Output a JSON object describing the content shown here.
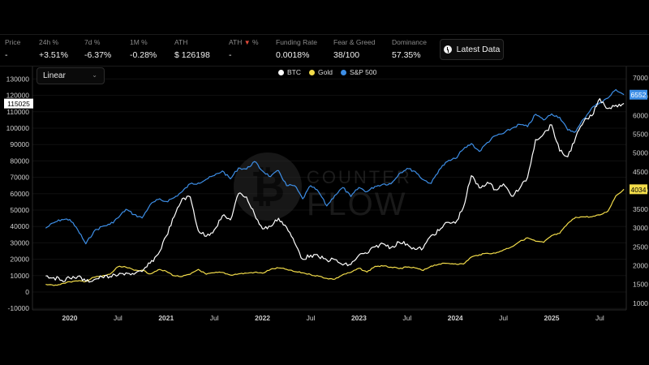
{
  "stats": [
    {
      "label": "Price",
      "value": "-"
    },
    {
      "label": "24h %",
      "value": "+3.51%"
    },
    {
      "label": "7d %",
      "value": "-6.37%"
    },
    {
      "label": "1M %",
      "value": "-0.28%"
    },
    {
      "label": "ATH",
      "value": "$ 126198"
    },
    {
      "label": "ATH",
      "label_suffix": "%",
      "value": "-"
    },
    {
      "label": "Funding Rate",
      "value": "0.0018%"
    },
    {
      "label": "Fear & Greed",
      "value": "38/100"
    },
    {
      "label": "Dominance",
      "value": "57.35%"
    }
  ],
  "toolbar": {
    "latest_data_label": "Latest Data",
    "scale_select_value": "Linear"
  },
  "colors": {
    "btc": "#ffffff",
    "gold": "#f2dc4a",
    "sp500": "#3d8ee6",
    "ath_down": "#e04a3a"
  },
  "chart_data": {
    "type": "line",
    "title": "",
    "legend": [
      "BTC",
      "Gold",
      "S&P 500"
    ],
    "legend_position": "top-center",
    "watermark": "COUNTER FLOW",
    "x_tick_labels": [
      "2020",
      "Jul",
      "2021",
      "Jul",
      "2022",
      "Jul",
      "2023",
      "Jul",
      "2024",
      "Jul",
      "2025",
      "Jul"
    ],
    "left_axis": {
      "series": "BTC",
      "ylim": [
        -10000,
        130000
      ],
      "ticks": [
        -10000,
        0,
        10000,
        20000,
        30000,
        40000,
        50000,
        60000,
        70000,
        80000,
        90000,
        100000,
        110000,
        120000,
        130000
      ],
      "current_value_label": "115025"
    },
    "right_axis": {
      "series": [
        "Gold",
        "S&P 500"
      ],
      "ylim": [
        1000,
        7000
      ],
      "ticks": [
        1000,
        1500,
        2000,
        2500,
        3000,
        3500,
        4000,
        4500,
        5000,
        5500,
        6000,
        6500,
        7000
      ],
      "current_value_labels": {
        "S&P 500": "6552",
        "Gold": "4034"
      }
    },
    "x": [
      "2019-10",
      "2019-11",
      "2019-12",
      "2020-01",
      "2020-02",
      "2020-03",
      "2020-04",
      "2020-05",
      "2020-06",
      "2020-07",
      "2020-08",
      "2020-09",
      "2020-10",
      "2020-11",
      "2020-12",
      "2021-01",
      "2021-02",
      "2021-03",
      "2021-04",
      "2021-05",
      "2021-06",
      "2021-07",
      "2021-08",
      "2021-09",
      "2021-10",
      "2021-11",
      "2021-12",
      "2022-01",
      "2022-02",
      "2022-03",
      "2022-04",
      "2022-05",
      "2022-06",
      "2022-07",
      "2022-08",
      "2022-09",
      "2022-10",
      "2022-11",
      "2022-12",
      "2023-01",
      "2023-02",
      "2023-03",
      "2023-04",
      "2023-05",
      "2023-06",
      "2023-07",
      "2023-08",
      "2023-09",
      "2023-10",
      "2023-11",
      "2023-12",
      "2024-01",
      "2024-02",
      "2024-03",
      "2024-04",
      "2024-05",
      "2024-06",
      "2024-07",
      "2024-08",
      "2024-09",
      "2024-10",
      "2024-11",
      "2024-12",
      "2025-01",
      "2025-02",
      "2025-03",
      "2025-04",
      "2025-05",
      "2025-06",
      "2025-07",
      "2025-08",
      "2025-09",
      "2025-10"
    ],
    "series": [
      {
        "name": "BTC",
        "axis": "left",
        "values": [
          9800,
          8800,
          7200,
          8500,
          9500,
          6500,
          7500,
          9200,
          9400,
          10200,
          11700,
          10800,
          12500,
          17500,
          23000,
          34000,
          46000,
          57000,
          58000,
          37500,
          34000,
          38000,
          46500,
          44000,
          60000,
          58000,
          47500,
          38500,
          40000,
          45000,
          39500,
          30000,
          20000,
          22500,
          21500,
          19500,
          19800,
          16500,
          16800,
          22500,
          23500,
          27500,
          29500,
          27200,
          30400,
          29300,
          26000,
          26800,
          34500,
          37500,
          42500,
          42000,
          51500,
          71000,
          63500,
          67000,
          62500,
          66000,
          58500,
          63000,
          70000,
          93000,
          96500,
          102000,
          86000,
          82500,
          94500,
          104000,
          107500,
          118000,
          112000,
          114000,
          115025
        ]
      },
      {
        "name": "Gold",
        "axis": "right",
        "values": [
          1500,
          1470,
          1520,
          1570,
          1590,
          1580,
          1690,
          1720,
          1770,
          1970,
          1960,
          1880,
          1880,
          1780,
          1890,
          1850,
          1730,
          1710,
          1770,
          1900,
          1770,
          1810,
          1820,
          1750,
          1780,
          1800,
          1820,
          1800,
          1900,
          1940,
          1900,
          1840,
          1810,
          1760,
          1720,
          1660,
          1640,
          1760,
          1820,
          1930,
          1830,
          1980,
          1990,
          1960,
          1920,
          1960,
          1940,
          1870,
          1990,
          2040,
          2060,
          2050,
          2040,
          2230,
          2290,
          2330,
          2330,
          2420,
          2500,
          2640,
          2740,
          2650,
          2620,
          2800,
          2860,
          3120,
          3290,
          3300,
          3300,
          3350,
          3450,
          3860,
          4034
        ]
      },
      {
        "name": "S&P 500",
        "axis": "right",
        "values": [
          3000,
          3140,
          3230,
          3230,
          2950,
          2580,
          2910,
          3040,
          3100,
          3270,
          3500,
          3360,
          3270,
          3620,
          3760,
          3710,
          3810,
          3970,
          4180,
          4200,
          4300,
          4400,
          4520,
          4310,
          4600,
          4570,
          4770,
          4520,
          4370,
          4530,
          4130,
          4130,
          3780,
          4130,
          3960,
          3590,
          3870,
          4080,
          3840,
          4080,
          3970,
          4110,
          4170,
          4180,
          4450,
          4590,
          4510,
          4290,
          4190,
          4560,
          4770,
          4850,
          5100,
          5250,
          5040,
          5280,
          5460,
          5520,
          5650,
          5760,
          5700,
          6030,
          5880,
          6040,
          5950,
          5610,
          5570,
          5910,
          6200,
          6340,
          6460,
          6690,
          6552
        ]
      }
    ]
  }
}
